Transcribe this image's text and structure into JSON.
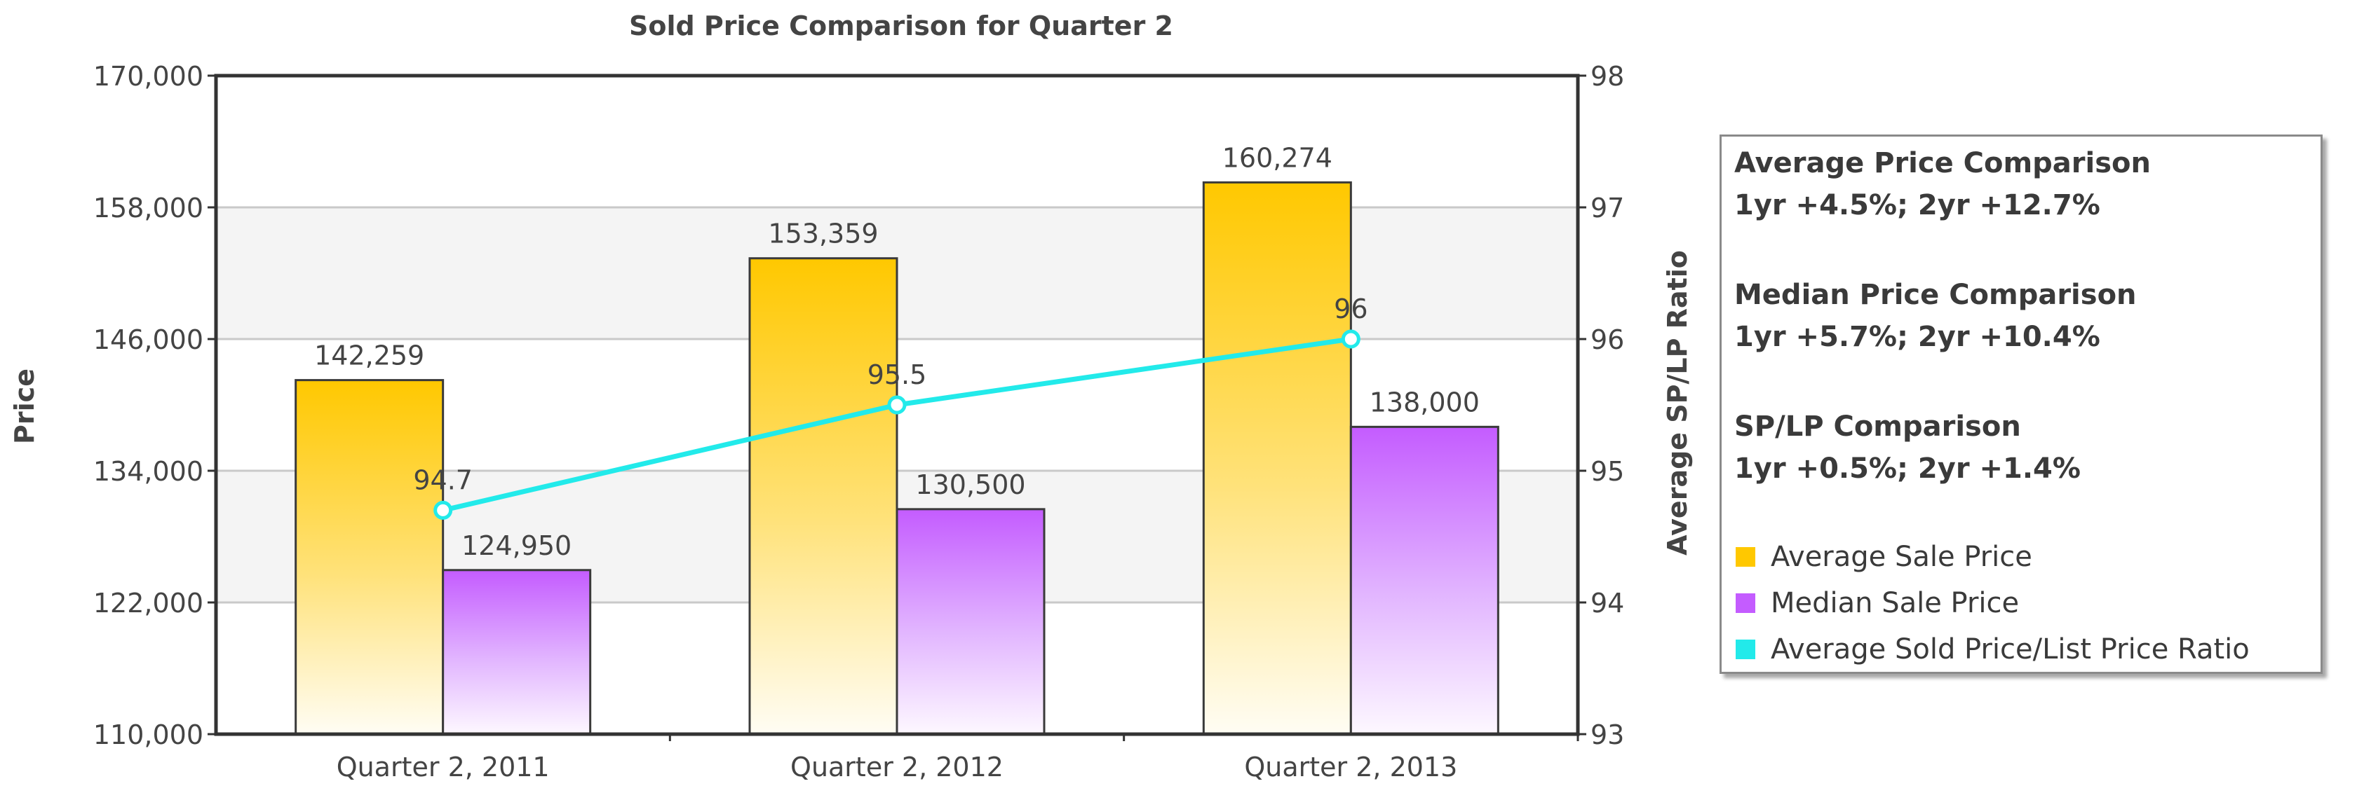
{
  "chart_data": {
    "type": "bar",
    "title": "Sold Price Comparison for Quarter 2",
    "ylabel": "Price",
    "y2label": "Average SP/LP Ratio",
    "categories": [
      "Quarter 2, 2011",
      "Quarter 2, 2012",
      "Quarter 2, 2013"
    ],
    "ylim": [
      110000,
      170000
    ],
    "y2lim": [
      93,
      98
    ],
    "y_ticks": [
      "110,000",
      "122,000",
      "134,000",
      "146,000",
      "158,000",
      "170,000"
    ],
    "y2_ticks": [
      "93",
      "94",
      "95",
      "96",
      "97",
      "98"
    ],
    "series": [
      {
        "name": "Average Sale Price",
        "type": "bar",
        "axis": "left",
        "color": "#ffc800",
        "values": [
          142259,
          153359,
          160274
        ],
        "labels": [
          "142,259",
          "153,359",
          "160,274"
        ]
      },
      {
        "name": "Median Sale Price",
        "type": "bar",
        "axis": "left",
        "color": "#c45cff",
        "values": [
          124950,
          130500,
          138000
        ],
        "labels": [
          "124,950",
          "130,500",
          "138,000"
        ]
      },
      {
        "name": "Average Sold Price/List Price Ratio",
        "type": "line",
        "axis": "right",
        "color": "#22eaea",
        "values": [
          94.7,
          95.5,
          96
        ],
        "labels": [
          "94.7",
          "95.5",
          "96"
        ]
      }
    ],
    "grid": true,
    "legend_position": "right"
  },
  "comparisons": [
    {
      "title": "Average Price Comparison",
      "value": "1yr +4.5%; 2yr +12.7%"
    },
    {
      "title": "Median Price Comparison",
      "value": "1yr +5.7%; 2yr +10.4%"
    },
    {
      "title": "SP/LP Comparison",
      "value": "1yr +0.5%; 2yr +1.4%"
    }
  ]
}
